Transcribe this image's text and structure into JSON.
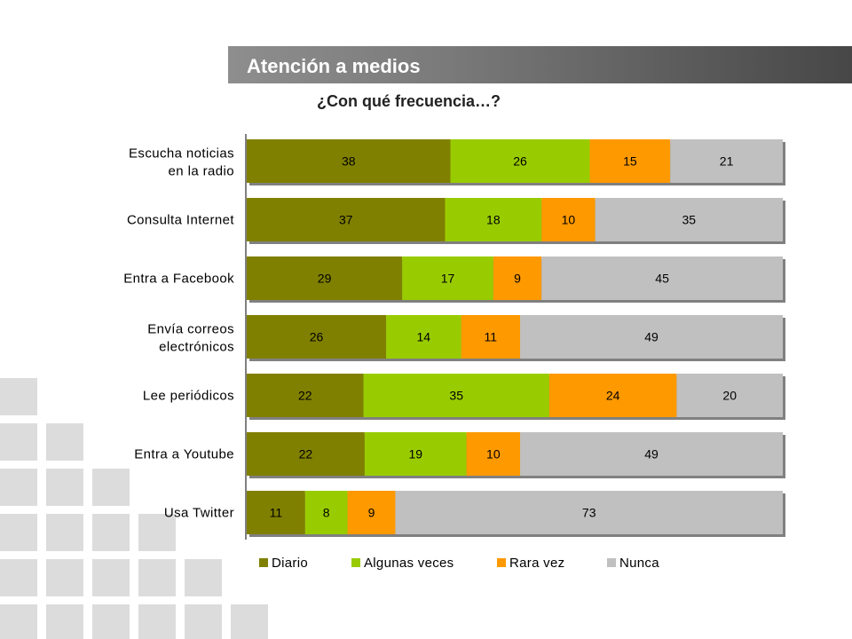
{
  "header": {
    "title": "Atención a medios",
    "subtitle": "¿Con qué frecuencia…?"
  },
  "chart_data": {
    "type": "bar",
    "orientation": "horizontal",
    "stacked": true,
    "percent_stacked": true,
    "categories": [
      "Escucha noticias en la radio",
      "Consulta Internet",
      "Entra a Facebook",
      "Envía correos electrónicos",
      "Lee periódicos",
      "Entra a Youtube",
      "Usa Twitter"
    ],
    "series": [
      {
        "name": "Diario",
        "color": "#808000",
        "values": [
          38,
          37,
          29,
          26,
          22,
          22,
          11
        ]
      },
      {
        "name": "Algunas veces",
        "color": "#99cc00",
        "values": [
          26,
          18,
          17,
          14,
          35,
          19,
          8
        ]
      },
      {
        "name": "Rara vez",
        "color": "#ff9900",
        "values": [
          15,
          10,
          9,
          11,
          24,
          10,
          9
        ]
      },
      {
        "name": "Nunca",
        "color": "#c0c0c0",
        "values": [
          21,
          35,
          45,
          49,
          20,
          49,
          73
        ]
      }
    ],
    "data_labels": true,
    "legend_position": "bottom",
    "grid": false
  }
}
